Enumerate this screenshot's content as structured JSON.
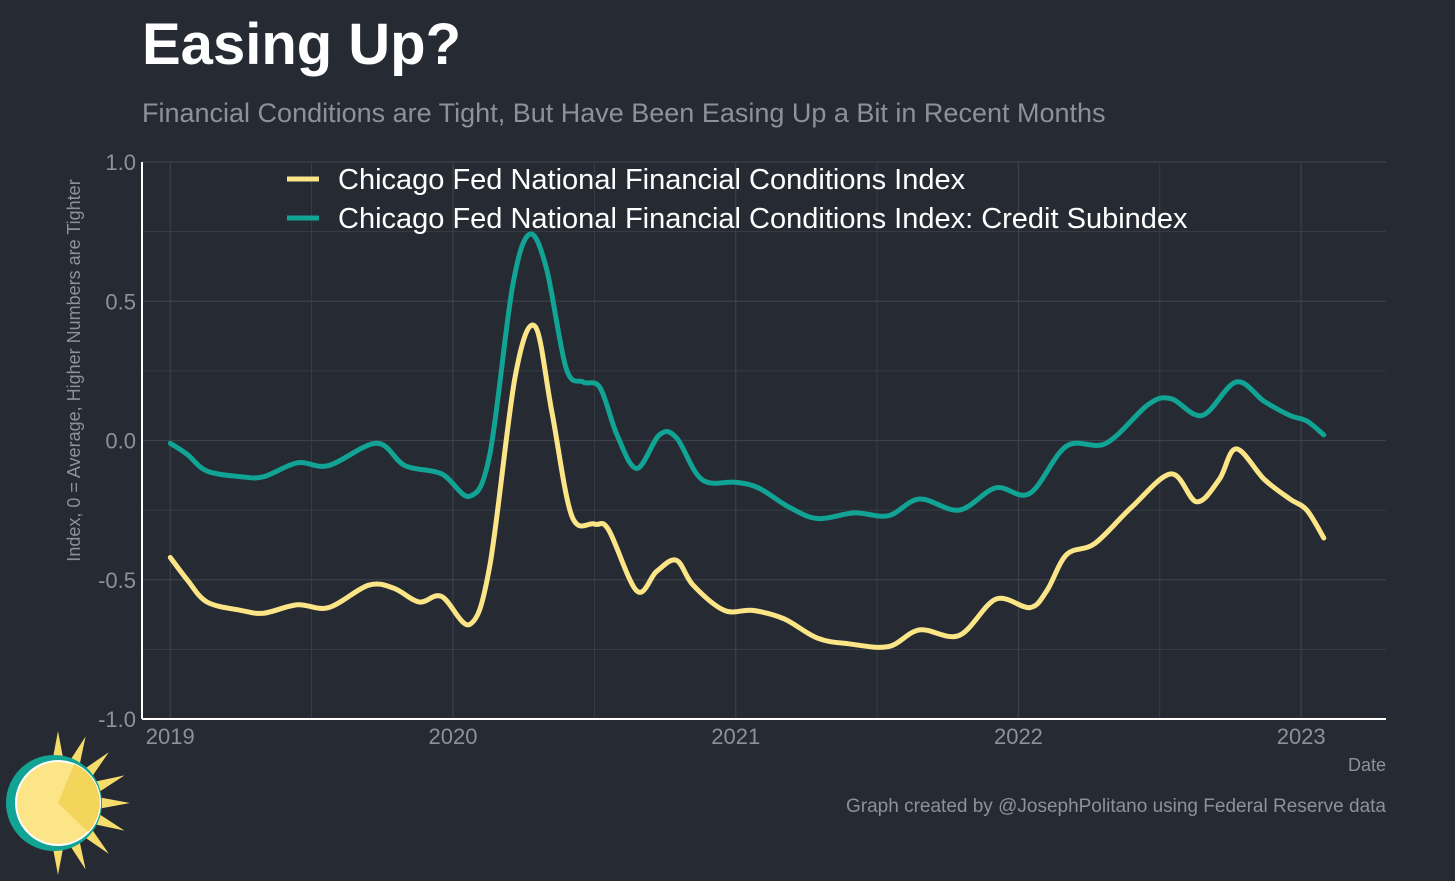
{
  "title": "Easing Up?",
  "subtitle": "Financial Conditions are Tight, But Have Been Easing Up a Bit in Recent Months",
  "credit": "Graph created by @JosephPolitano using Federal Reserve data",
  "logo": "sun-logo-icon",
  "colors": {
    "background": "#252a33",
    "grid": "#3c414a",
    "nfci": "#fce587",
    "credit": "#11a393",
    "text": "#8d9299",
    "title": "#ffffff"
  },
  "chart_data": {
    "type": "line",
    "title": "Easing Up?",
    "subtitle": "Financial Conditions are Tight, But Have Been Easing Up a Bit in Recent Months",
    "xlabel": "Date",
    "ylabel": "Index, 0 = Average, Higher Numbers are Tighter",
    "ylim": [
      -1.0,
      1.0
    ],
    "xlim": [
      2018.9,
      2023.3
    ],
    "yticks": [
      -1.0,
      -0.5,
      0.0,
      0.5,
      1.0
    ],
    "ytick_labels": [
      "-1.0",
      "-0.5",
      "0.0",
      "0.5",
      "1.0"
    ],
    "xticks": [
      2019,
      2020,
      2021,
      2022,
      2023
    ],
    "xtick_labels": [
      "2019",
      "2020",
      "2021",
      "2022",
      "2023"
    ],
    "grid": true,
    "legend_position": "top",
    "series": [
      {
        "name": "Chicago Fed National Financial Conditions Index",
        "color": "#fce587",
        "points": [
          [
            2019.0,
            -0.42
          ],
          [
            2019.06,
            -0.5
          ],
          [
            2019.13,
            -0.58
          ],
          [
            2019.25,
            -0.61
          ],
          [
            2019.33,
            -0.62
          ],
          [
            2019.45,
            -0.59
          ],
          [
            2019.56,
            -0.6
          ],
          [
            2019.7,
            -0.52
          ],
          [
            2019.79,
            -0.53
          ],
          [
            2019.88,
            -0.58
          ],
          [
            2019.96,
            -0.56
          ],
          [
            2020.06,
            -0.66
          ],
          [
            2020.13,
            -0.45
          ],
          [
            2020.22,
            0.23
          ],
          [
            2020.29,
            0.41
          ],
          [
            2020.35,
            0.1
          ],
          [
            2020.42,
            -0.27
          ],
          [
            2020.5,
            -0.3
          ],
          [
            2020.55,
            -0.32
          ],
          [
            2020.65,
            -0.54
          ],
          [
            2020.72,
            -0.47
          ],
          [
            2020.79,
            -0.43
          ],
          [
            2020.85,
            -0.52
          ],
          [
            2020.96,
            -0.61
          ],
          [
            2021.06,
            -0.61
          ],
          [
            2021.17,
            -0.64
          ],
          [
            2021.29,
            -0.71
          ],
          [
            2021.4,
            -0.73
          ],
          [
            2021.54,
            -0.74
          ],
          [
            2021.65,
            -0.68
          ],
          [
            2021.79,
            -0.7
          ],
          [
            2021.92,
            -0.57
          ],
          [
            2022.04,
            -0.6
          ],
          [
            2022.1,
            -0.54
          ],
          [
            2022.17,
            -0.41
          ],
          [
            2022.27,
            -0.37
          ],
          [
            2022.4,
            -0.24
          ],
          [
            2022.54,
            -0.12
          ],
          [
            2022.63,
            -0.22
          ],
          [
            2022.71,
            -0.14
          ],
          [
            2022.77,
            -0.03
          ],
          [
            2022.87,
            -0.14
          ],
          [
            2022.96,
            -0.21
          ],
          [
            2023.02,
            -0.25
          ],
          [
            2023.08,
            -0.35
          ]
        ]
      },
      {
        "name": "Chicago Fed National Financial Conditions Index: Credit Subindex",
        "color": "#11a393",
        "points": [
          [
            2019.0,
            -0.01
          ],
          [
            2019.06,
            -0.05
          ],
          [
            2019.13,
            -0.11
          ],
          [
            2019.25,
            -0.13
          ],
          [
            2019.33,
            -0.13
          ],
          [
            2019.45,
            -0.08
          ],
          [
            2019.56,
            -0.09
          ],
          [
            2019.73,
            -0.01
          ],
          [
            2019.83,
            -0.09
          ],
          [
            2019.96,
            -0.12
          ],
          [
            2020.06,
            -0.2
          ],
          [
            2020.13,
            -0.05
          ],
          [
            2020.21,
            0.55
          ],
          [
            2020.27,
            0.74
          ],
          [
            2020.33,
            0.62
          ],
          [
            2020.4,
            0.26
          ],
          [
            2020.46,
            0.21
          ],
          [
            2020.52,
            0.19
          ],
          [
            2020.58,
            0.02
          ],
          [
            2020.65,
            -0.1
          ],
          [
            2020.73,
            0.02
          ],
          [
            2020.79,
            0.01
          ],
          [
            2020.88,
            -0.14
          ],
          [
            2021.0,
            -0.15
          ],
          [
            2021.08,
            -0.17
          ],
          [
            2021.19,
            -0.24
          ],
          [
            2021.29,
            -0.28
          ],
          [
            2021.42,
            -0.26
          ],
          [
            2021.54,
            -0.27
          ],
          [
            2021.65,
            -0.21
          ],
          [
            2021.79,
            -0.25
          ],
          [
            2021.92,
            -0.17
          ],
          [
            2022.04,
            -0.19
          ],
          [
            2022.17,
            -0.02
          ],
          [
            2022.31,
            -0.01
          ],
          [
            2022.46,
            0.13
          ],
          [
            2022.54,
            0.15
          ],
          [
            2022.65,
            0.09
          ],
          [
            2022.77,
            0.21
          ],
          [
            2022.87,
            0.14
          ],
          [
            2022.96,
            0.09
          ],
          [
            2023.02,
            0.07
          ],
          [
            2023.08,
            0.02
          ]
        ]
      }
    ]
  }
}
